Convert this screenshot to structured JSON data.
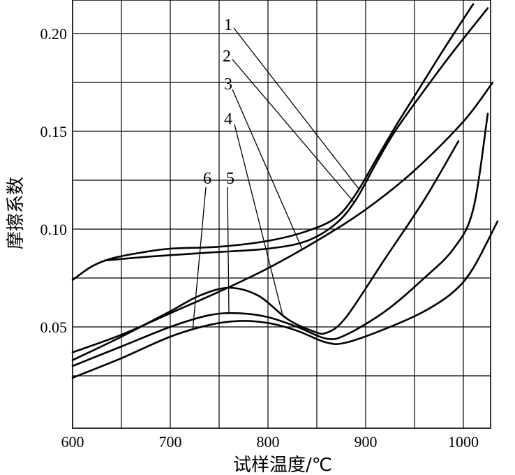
{
  "chart_data": {
    "type": "line",
    "title": "",
    "xlabel": "试样温度/℃",
    "ylabel": "摩擦系数",
    "xlim": [
      600,
      1030
    ],
    "ylim": [
      0,
      0.215
    ],
    "xticks": [
      600,
      700,
      800,
      900,
      1000
    ],
    "xtick_labels": [
      "600",
      "700",
      "800",
      "900",
      "1000"
    ],
    "yticks": [
      0.05,
      0.1,
      0.15,
      0.2
    ],
    "ytick_labels": [
      "0.05",
      "0.10",
      "0.15",
      "0.20"
    ],
    "grid": true,
    "series": [
      {
        "name": "1",
        "x": [
          600,
          620,
          640,
          670,
          700,
          750,
          800,
          840,
          870,
          890,
          910,
          930,
          950,
          980,
          1010
        ],
        "y": [
          0.074,
          0.081,
          0.085,
          0.088,
          0.09,
          0.091,
          0.094,
          0.099,
          0.106,
          0.118,
          0.135,
          0.152,
          0.168,
          0.192,
          0.215
        ]
      },
      {
        "name": "2",
        "x": [
          633,
          680,
          740,
          800,
          840,
          870,
          890,
          910,
          930,
          960,
          990,
          1025
        ],
        "y": [
          0.084,
          0.086,
          0.088,
          0.09,
          0.094,
          0.103,
          0.115,
          0.133,
          0.15,
          0.171,
          0.191,
          0.213
        ]
      },
      {
        "name": "3",
        "x": [
          600,
          650,
          700,
          750,
          800,
          850,
          900,
          950,
          1000,
          1030
        ],
        "y": [
          0.037,
          0.046,
          0.057,
          0.068,
          0.08,
          0.094,
          0.11,
          0.13,
          0.155,
          0.175
        ]
      },
      {
        "name": "4",
        "x": [
          600,
          650,
          700,
          730,
          760,
          790,
          820,
          845,
          860,
          880,
          920,
          960,
          995
        ],
        "y": [
          0.033,
          0.045,
          0.058,
          0.066,
          0.07,
          0.066,
          0.054,
          0.048,
          0.047,
          0.055,
          0.085,
          0.115,
          0.145
        ]
      },
      {
        "name": "5",
        "x": [
          600,
          650,
          700,
          740,
          770,
          800,
          830,
          860,
          880,
          920,
          960,
          990,
          1010,
          1025
        ],
        "y": [
          0.03,
          0.04,
          0.05,
          0.056,
          0.057,
          0.055,
          0.05,
          0.044,
          0.046,
          0.058,
          0.075,
          0.09,
          0.11,
          0.159
        ]
      },
      {
        "name": "6",
        "x": [
          600,
          650,
          700,
          740,
          770,
          800,
          830,
          860,
          880,
          920,
          960,
          990,
          1010,
          1035
        ],
        "y": [
          0.024,
          0.034,
          0.045,
          0.051,
          0.053,
          0.052,
          0.048,
          0.042,
          0.042,
          0.049,
          0.058,
          0.068,
          0.08,
          0.104
        ]
      }
    ]
  }
}
